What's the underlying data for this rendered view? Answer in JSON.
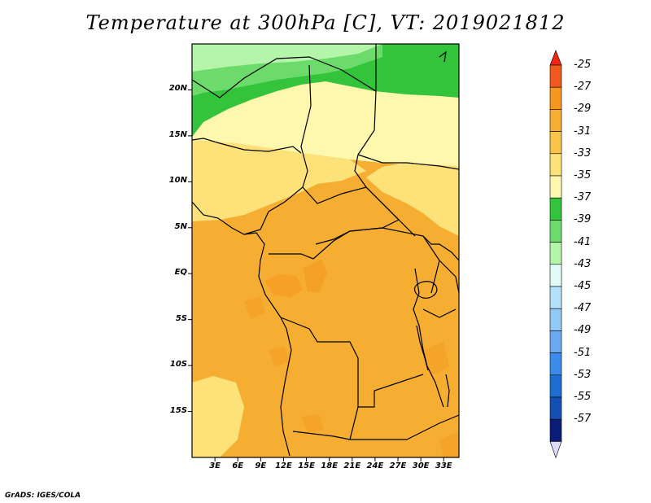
{
  "title": "Temperature at 300hPa [C], VT: 2019021812",
  "credit": "GrADS: IGES/COLA",
  "map": {
    "lat_ticks": [
      "20N",
      "15N",
      "10N",
      "5N",
      "EQ",
      "5S",
      "10S",
      "15S"
    ],
    "lat_values": [
      20,
      15,
      10,
      5,
      0,
      -5,
      -10,
      -15
    ],
    "lon_ticks": [
      "3E",
      "6E",
      "9E",
      "12E",
      "15E",
      "18E",
      "21E",
      "24E",
      "27E",
      "30E",
      "33E"
    ],
    "lon_values": [
      3,
      6,
      9,
      12,
      15,
      18,
      21,
      24,
      27,
      30,
      33
    ],
    "extent": {
      "lon_min": 0,
      "lon_max": 35,
      "lat_min": -20,
      "lat_max": 25
    }
  },
  "colorbar": {
    "labels": [
      "-25",
      "-27",
      "-29",
      "-31",
      "-33",
      "-35",
      "-37",
      "-39",
      "-41",
      "-43",
      "-45",
      "-47",
      "-49",
      "-51",
      "-53",
      "-55",
      "-57"
    ],
    "colors": [
      "#f05a1e",
      "#f5961e",
      "#f6ae32",
      "#f8c44a",
      "#fde27a",
      "#fef7ae",
      "#33c43c",
      "#6cdb6c",
      "#b4f5aa",
      "#e2fbf8",
      "#b2e1f9",
      "#91c8f6",
      "#6aaaf0",
      "#3b8beb",
      "#1e6ed2",
      "#1450b4",
      "#0a1e78"
    ],
    "top_arrow_color": "#f02812",
    "bottom_arrow_color": "#dcdcfa"
  },
  "field_colors": {
    "warm_dark": "#f6ae32",
    "warm": "#f8c44a",
    "mild": "#fde27a",
    "pale": "#fef7ae",
    "green_dark": "#33c43c",
    "green": "#6cdb6c",
    "green_light": "#b4f5aa"
  }
}
